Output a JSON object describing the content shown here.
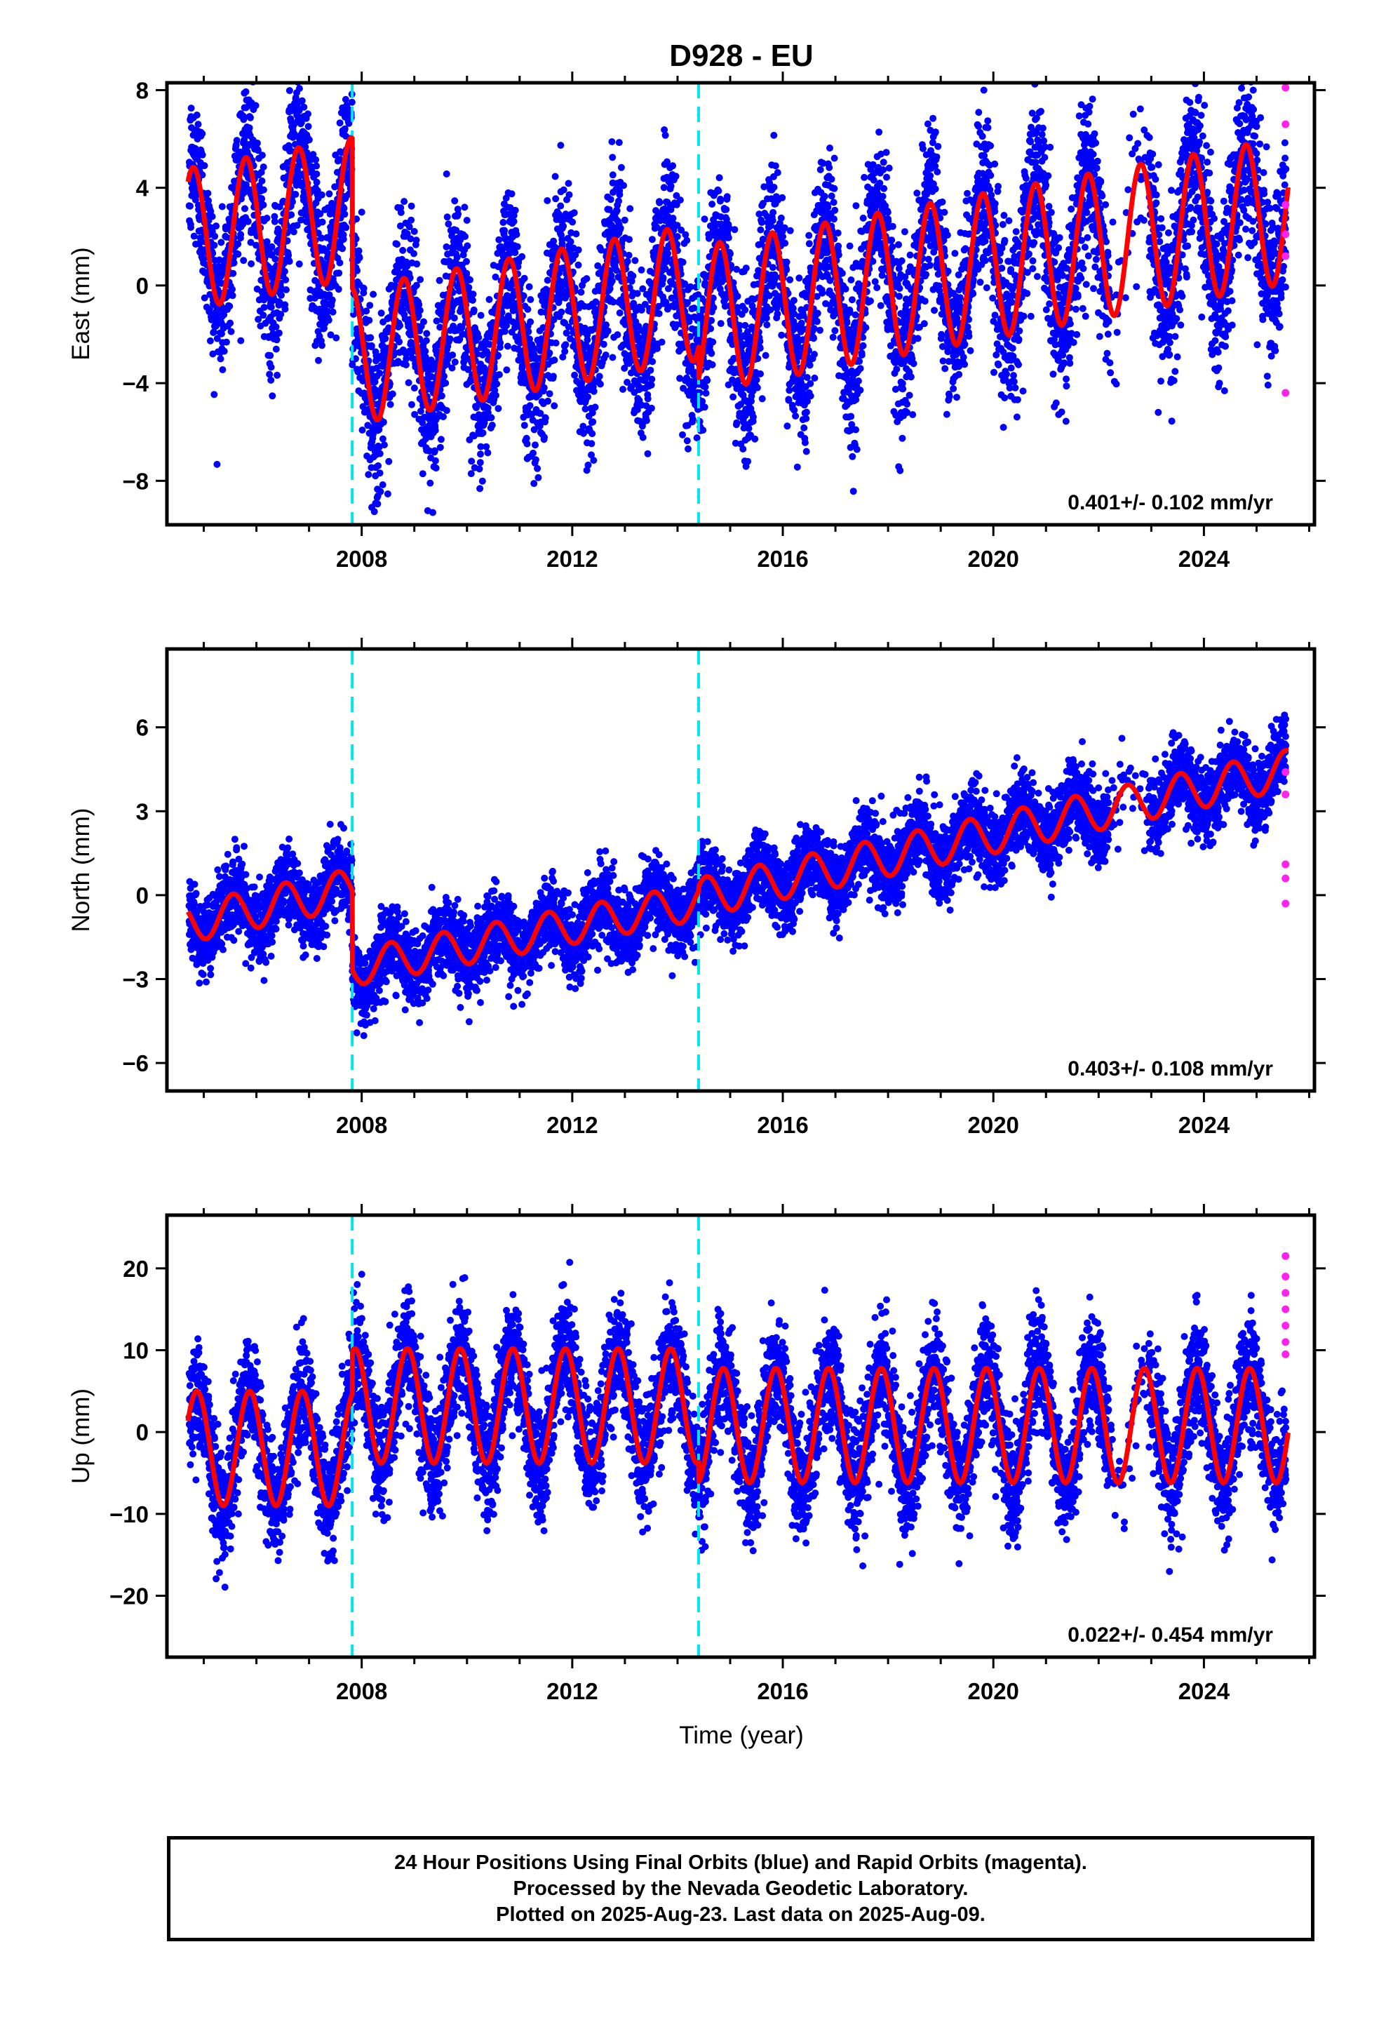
{
  "title": "D928 - EU",
  "xlabel": "Time (year)",
  "caption": [
    "24 Hour Positions Using Final Orbits (blue) and Rapid Orbits (magenta).",
    "Processed by the Nevada Geodetic Laboratory.",
    "Plotted on 2025-Aug-23. Last data on 2025-Aug-09."
  ],
  "colors": {
    "final_orbits": "#0000ff",
    "rapid_orbits": "#ff22ee",
    "model_fit": "#ff0000",
    "offset_marker": "#00e5ee",
    "frame": "#000000"
  },
  "chart_data": [
    {
      "type": "scatter",
      "ylabel": "East (mm)",
      "xlim": [
        2004.3,
        2026.1
      ],
      "ylim": [
        -9.8,
        8.3
      ],
      "xticks": [
        2008,
        2012,
        2016,
        2020,
        2024
      ],
      "yticks": [
        -8,
        -4,
        0,
        4,
        8
      ],
      "yticklabels": [
        "−8",
        "−4",
        "0",
        "4",
        "8"
      ],
      "rate_label": "0.401+/- 0.102 mm/yr",
      "velocity": 0.401,
      "offset_epochs": [
        2007.82,
        2014.4
      ],
      "series": [
        {
          "kind": "model",
          "segments": [
            {
              "start": 2004.7,
              "end": 2007.82,
              "intercept": 1.9,
              "slope": 0.401,
              "amplitude": 2.9,
              "phase": 0.55
            },
            {
              "start": 2007.82,
              "end": 2014.4,
              "intercept": -2.9,
              "slope": 0.401,
              "amplitude": 2.8,
              "phase": 0.55
            },
            {
              "start": 2014.4,
              "end": 2025.6,
              "intercept": -1.4,
              "slope": 0.401,
              "amplitude": 3.0,
              "phase": 0.55
            }
          ]
        }
      ],
      "rapid_points": [
        8.1,
        6.6,
        3.3,
        2.1,
        1.2,
        -4.4
      ]
    },
    {
      "type": "scatter",
      "ylabel": "North (mm)",
      "xlim": [
        2004.3,
        2026.1
      ],
      "ylim": [
        -7.0,
        8.8
      ],
      "xticks": [
        2008,
        2012,
        2016,
        2020,
        2024
      ],
      "yticks": [
        -6,
        -3,
        0,
        3,
        6
      ],
      "yticklabels": [
        "−6",
        "−3",
        "0",
        "3",
        "6"
      ],
      "rate_label": "0.403+/- 0.108 mm/yr",
      "velocity": 0.403,
      "offset_epochs": [
        2007.82,
        2014.4
      ],
      "series": [
        {
          "kind": "model",
          "segments": [
            {
              "start": 2004.7,
              "end": 2007.82,
              "intercept": -1.0,
              "slope": 0.4,
              "amplitude": 0.7,
              "phase": 0.3
            },
            {
              "start": 2007.82,
              "end": 2014.4,
              "intercept": -2.6,
              "slope": 0.36,
              "amplitude": 0.65,
              "phase": 0.3
            },
            {
              "start": 2014.4,
              "end": 2025.6,
              "intercept": -0.1,
              "slope": 0.41,
              "amplitude": 0.7,
              "phase": 0.3
            }
          ]
        }
      ],
      "rapid_points": [
        4.4,
        3.6,
        1.1,
        0.6,
        -0.3
      ]
    },
    {
      "type": "scatter",
      "ylabel": "Up (mm)",
      "xlim": [
        2004.3,
        2026.1
      ],
      "ylim": [
        -27.5,
        26.5
      ],
      "xticks": [
        2008,
        2012,
        2016,
        2020,
        2024
      ],
      "yticks": [
        -20,
        -10,
        0,
        10,
        20
      ],
      "yticklabels": [
        "−20",
        "−10",
        "0",
        "10",
        "20"
      ],
      "rate_label": "0.022+/- 0.454 mm/yr",
      "velocity": 0.022,
      "offset_epochs": [
        2007.82,
        2014.4
      ],
      "series": [
        {
          "kind": "model",
          "segments": [
            {
              "start": 2004.7,
              "end": 2007.82,
              "intercept": -2.0,
              "slope": 0.0,
              "amplitude": 7.0,
              "phase": 0.62
            },
            {
              "start": 2007.82,
              "end": 2014.4,
              "intercept": 3.2,
              "slope": 0.0,
              "amplitude": 7.0,
              "phase": 0.62
            },
            {
              "start": 2014.4,
              "end": 2025.6,
              "intercept": 0.8,
              "slope": 0.0,
              "amplitude": 7.0,
              "phase": 0.62
            }
          ]
        }
      ],
      "rapid_points": [
        21.5,
        19.0,
        17.0,
        15.0,
        13.0,
        11.0,
        9.5
      ]
    }
  ]
}
